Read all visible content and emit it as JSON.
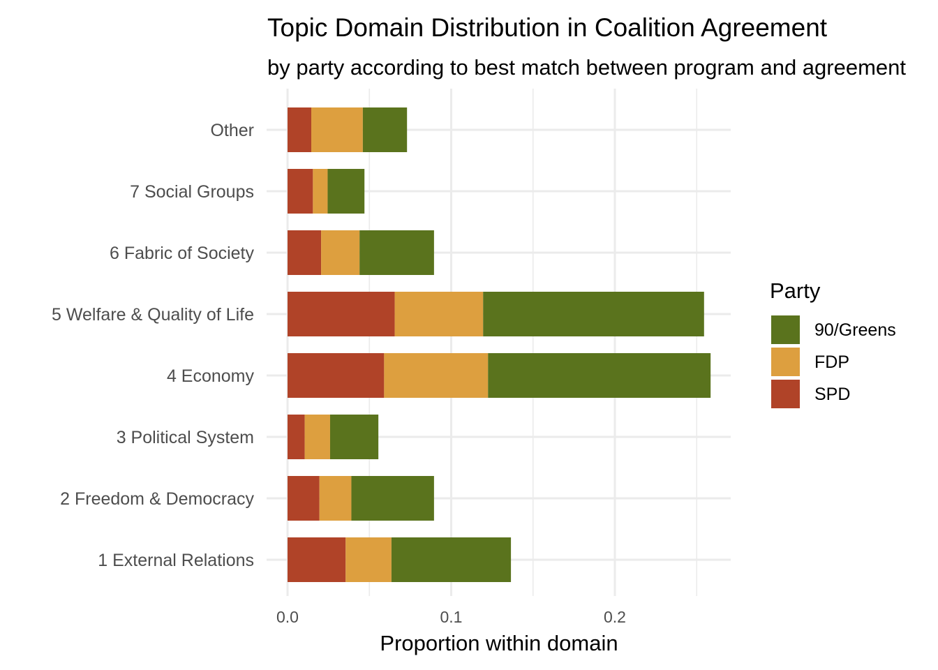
{
  "chart_data": {
    "type": "bar",
    "orientation": "horizontal",
    "stacked": true,
    "title": "Topic Domain Distribution in Coalition Agreement",
    "subtitle": "by party according to best match between program and agreement",
    "xlabel": "Proportion within domain",
    "ylabel": "",
    "xlim": [
      0,
      0.27
    ],
    "x_ticks": [
      0.0,
      0.1,
      0.2
    ],
    "x_tick_labels": [
      "0.0",
      "0.1",
      "0.2"
    ],
    "grid": true,
    "legend": {
      "title": "Party",
      "position": "right"
    },
    "categories": [
      "1 External Relations",
      "2 Freedom & Democracy",
      "3 Political System",
      "4 Economy",
      "5 Welfare & Quality of Life",
      "6 Fabric of Society",
      "7 Social Groups",
      "Other"
    ],
    "series": [
      {
        "name": "SPD",
        "color": "#b04328",
        "values": [
          0.0355,
          0.0195,
          0.0105,
          0.059,
          0.0655,
          0.0205,
          0.0155,
          0.0145
        ]
      },
      {
        "name": "FDP",
        "color": "#dd9f3f",
        "values": [
          0.028,
          0.0195,
          0.0155,
          0.0635,
          0.054,
          0.0235,
          0.009,
          0.0315
        ]
      },
      {
        "name": "90/Greens",
        "color": "#5a731d",
        "values": [
          0.073,
          0.0505,
          0.0295,
          0.136,
          0.135,
          0.0455,
          0.0225,
          0.027
        ]
      }
    ],
    "legend_order": [
      "90/Greens",
      "FDP",
      "SPD"
    ]
  }
}
